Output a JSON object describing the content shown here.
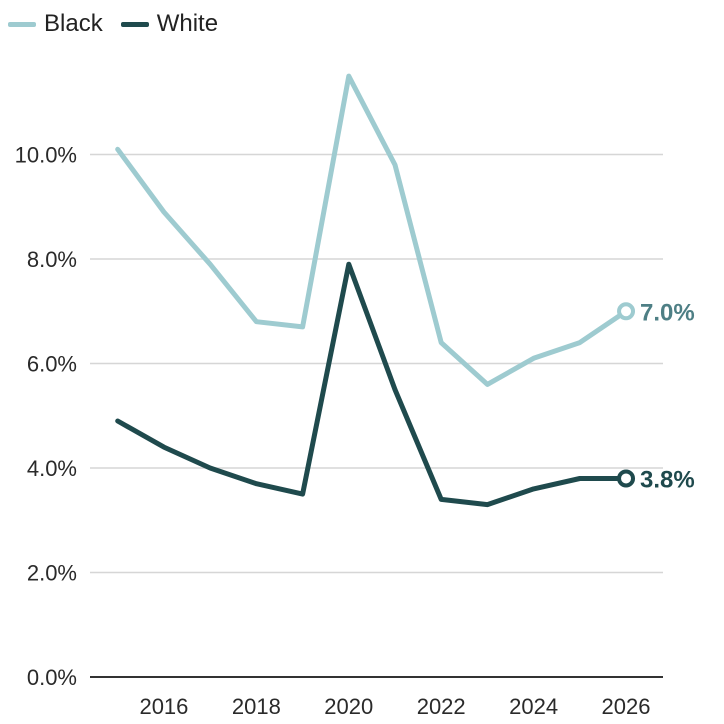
{
  "chart_data": {
    "type": "line",
    "x": [
      2015,
      2016,
      2017,
      2018,
      2019,
      2020,
      2021,
      2022,
      2023,
      2024,
      2025,
      2026
    ],
    "series": [
      {
        "name": "Black",
        "color": "#9ecbd0",
        "values": [
          10.1,
          8.9,
          7.9,
          6.8,
          6.7,
          11.5,
          9.8,
          6.4,
          5.6,
          6.1,
          6.4,
          7.0
        ],
        "end_label": "7.0%"
      },
      {
        "name": "White",
        "color": "#1f4a4d",
        "values": [
          4.9,
          4.4,
          4.0,
          3.7,
          3.5,
          7.9,
          5.5,
          3.4,
          3.3,
          3.6,
          3.8,
          3.8
        ],
        "end_label": "3.8%"
      }
    ],
    "x_ticks": [
      "2016",
      "2018",
      "2020",
      "2022",
      "2024",
      "2026"
    ],
    "x_tick_values": [
      2016,
      2018,
      2020,
      2022,
      2024,
      2026
    ],
    "y_ticks": [
      "0.0%",
      "2.0%",
      "4.0%",
      "6.0%",
      "8.0%",
      "10.0%"
    ],
    "y_tick_values": [
      0,
      2,
      4,
      6,
      8,
      10
    ],
    "xlim": [
      2014.4,
      2026.8
    ],
    "ylim": [
      0,
      12
    ],
    "grid": true,
    "legend_position": "top-left",
    "title": "",
    "xlabel": "",
    "ylabel": ""
  },
  "legend": {
    "black_label": "Black",
    "white_label": "White"
  }
}
